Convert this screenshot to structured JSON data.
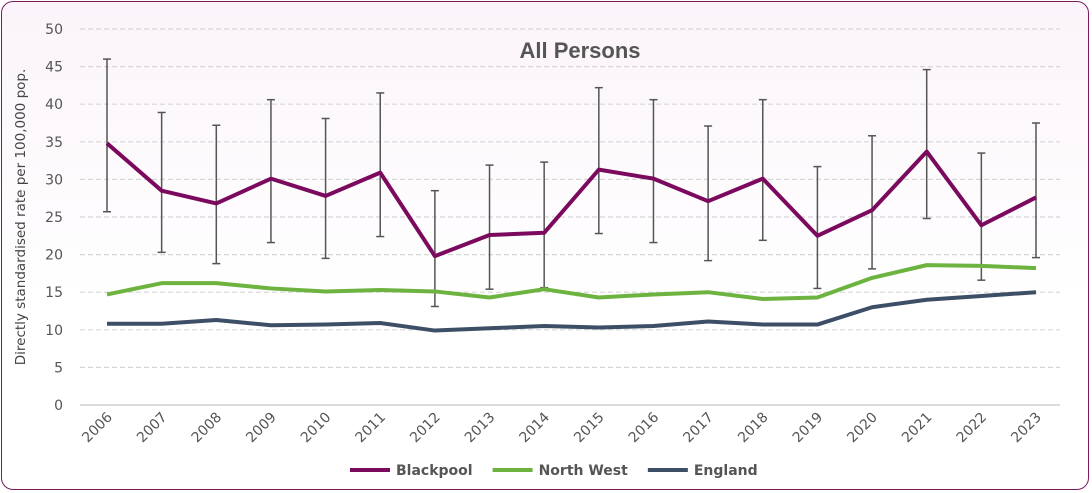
{
  "chart_data": {
    "type": "line",
    "title": "All Persons",
    "xlabel": "",
    "ylabel": "Directly standardised rate per 100,000 pop.",
    "ylim": [
      0,
      50
    ],
    "yticks": [
      0,
      5,
      10,
      15,
      20,
      25,
      30,
      35,
      40,
      45,
      50
    ],
    "grid": true,
    "legend_position": "bottom",
    "categories": [
      "2006",
      "2007",
      "2008",
      "2009",
      "2010",
      "2011",
      "2012",
      "2013",
      "2014",
      "2015",
      "2016",
      "2017",
      "2018",
      "2019",
      "2020",
      "2021",
      "2022",
      "2023"
    ],
    "series": [
      {
        "name": "Blackpool",
        "color": "#7b0a5e",
        "values": [
          34.8,
          28.5,
          26.8,
          30.1,
          27.8,
          30.9,
          19.8,
          22.6,
          22.9,
          31.3,
          30.1,
          27.1,
          30.1,
          22.5,
          25.9,
          33.7,
          23.9,
          27.6
        ],
        "error_upper": [
          46.0,
          38.9,
          37.2,
          40.6,
          38.1,
          41.5,
          28.5,
          31.9,
          32.3,
          42.2,
          40.6,
          37.1,
          40.6,
          31.7,
          35.8,
          44.6,
          33.5,
          37.5
        ],
        "error_lower": [
          25.7,
          20.3,
          18.8,
          21.6,
          19.5,
          22.4,
          13.1,
          15.4,
          15.6,
          22.8,
          21.6,
          19.2,
          21.9,
          15.5,
          18.1,
          24.8,
          16.6,
          19.6
        ]
      },
      {
        "name": "North West",
        "color": "#6db33f",
        "values": [
          14.7,
          16.2,
          16.2,
          15.5,
          15.1,
          15.3,
          15.1,
          14.3,
          15.4,
          14.3,
          14.7,
          15.0,
          14.1,
          14.3,
          16.9,
          18.6,
          18.5,
          18.2
        ]
      },
      {
        "name": "England",
        "color": "#3d4f66",
        "values": [
          10.8,
          10.8,
          11.3,
          10.6,
          10.7,
          10.9,
          9.9,
          10.2,
          10.5,
          10.3,
          10.5,
          11.1,
          10.7,
          10.7,
          13.0,
          14.0,
          14.5,
          15.0
        ]
      }
    ]
  }
}
